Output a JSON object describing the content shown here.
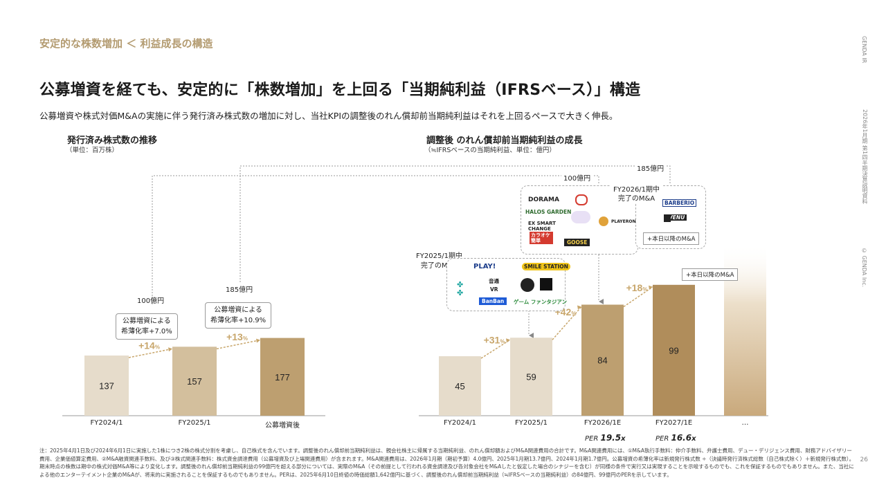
{
  "section_title": "安定的な株数増加 ＜ 利益成長の構造",
  "headline": "公募増資を経ても、安定的に「株数増加」を上回る「当期純利益（IFRSベース）」構造",
  "subheadline": "公募増資や株式対価M&Aの実施に伴う発行済み株式数の増加に対し、当社KPIの調整後のれん償却前当期純利益はそれを上回るペースで大きく伸長。",
  "side": {
    "brand": "GENDA IR",
    "doc": "2026年1月期 第1四半期決算説明資料",
    "copyright": "© GENDA Inc."
  },
  "page_number": "26",
  "note": "注：2025年4月1日及び2024年6月1日に実施した1株につき2株の株式分割を考慮し、自己株式を含んでいます。調整後のれん償却前当期純利益は、親会社株主に帰属する当期純利益、のれん償却額およびM&A関連費用の合計です。M&A関連費用には、①M&A執行手数料：仲介手数料、弁護士費用、デュー・デリジェンス費用、財務アドバイザリー費用、企業価値算定費用、②M&A融資関連手数料、及び③株式関連手数料：株式資金調達費用（公募増資及び上場関連費用）が含まれます。M&A関連費用は、2026年1月期（期初予算）4.0億円、2025年1月期13.7億円、2024年1月期1.7億円。公募増資の希薄化率は新規発行株式数 ÷（決議時発行済株式総数（自己株式除く）＋新規発行株式数）。期末時点の株数は期中の株式対価M&A等により変化します。調整後のれん償却前当期純利益の99億円を超える部分については、実際のM&A（その前提として行われる資金調達及び各対象会社をM&Aしたと仮定した場合のシナジーを含む）が同様の条件で実行又は実現することを示唆するものでも、これを保証するものでもありません。また、当社による他のエンターテイメント企業のM&Aが、将来的に実施されることを保証するものでもありません。PERは、2025年6月10日終値の時価総額1,642億円に基づく、調整後のれん償却前当期純利益（≒IFRSベースの当期純利益）の84億円、99億円のPERを示しています。",
  "colors": {
    "light": "#e6dccb",
    "mid": "#d3bf9d",
    "dark": "#bd9f70",
    "darker": "#b08d5b",
    "accent": "#c8a66b"
  },
  "chart_data": [
    {
      "type": "bar",
      "title": "発行済み株式数の推移",
      "unit": "（単位：百万株）",
      "categories": [
        "FY2024/1",
        "FY2025/1",
        "公募増資後"
      ],
      "values": [
        137,
        157,
        177
      ],
      "growth_labels": [
        "+14",
        "+13"
      ],
      "growth_suffix": "%",
      "callouts": [
        {
          "amount": "100億円",
          "lines": [
            "公募増資による",
            "希薄化率+7.0%"
          ]
        },
        {
          "amount": "185億円",
          "lines": [
            "公募増資による",
            "希薄化率+10.9%"
          ]
        }
      ]
    },
    {
      "type": "bar",
      "title": "調整後 のれん償却前当期純利益の成長",
      "unit": "（≒IFRSベースの当期純利益、単位：億円）",
      "categories": [
        "FY2024/1",
        "FY2025/1",
        "FY2026/1E",
        "FY2027/1E",
        "…"
      ],
      "values": [
        45,
        59,
        84,
        99,
        null
      ],
      "growth_labels": [
        "+31",
        "+42",
        "+18"
      ],
      "growth_suffix": "%",
      "per": [
        {
          "prefix": "PER",
          "value": "19.5",
          "suffix": "x"
        },
        {
          "prefix": "PER",
          "value": "16.6",
          "suffix": "x"
        }
      ],
      "link_labels": [
        "100億円",
        "185億円"
      ],
      "ma_2025": {
        "title": [
          "FY2025/1期中",
          "完了のM&A"
        ],
        "logos": [
          "PLAY!",
          "SMILE STATION",
          "音通",
          "VR",
          "BanBan",
          "ゲーム ファンタジアン"
        ]
      },
      "ma_2026": {
        "title": [
          "FY2026/1期中",
          "完了のM&A"
        ],
        "logos": [
          "DORAMA",
          "HALOS GARDEN",
          "EX SMART CHANGE",
          "カラオケ 簡単",
          "GOOSE",
          "PLAYERONE",
          "BARBERIO",
          "VENU"
        ],
        "tag": "+本日以降のM&A"
      },
      "tag_2027": "+本日以降のM&A"
    }
  ]
}
